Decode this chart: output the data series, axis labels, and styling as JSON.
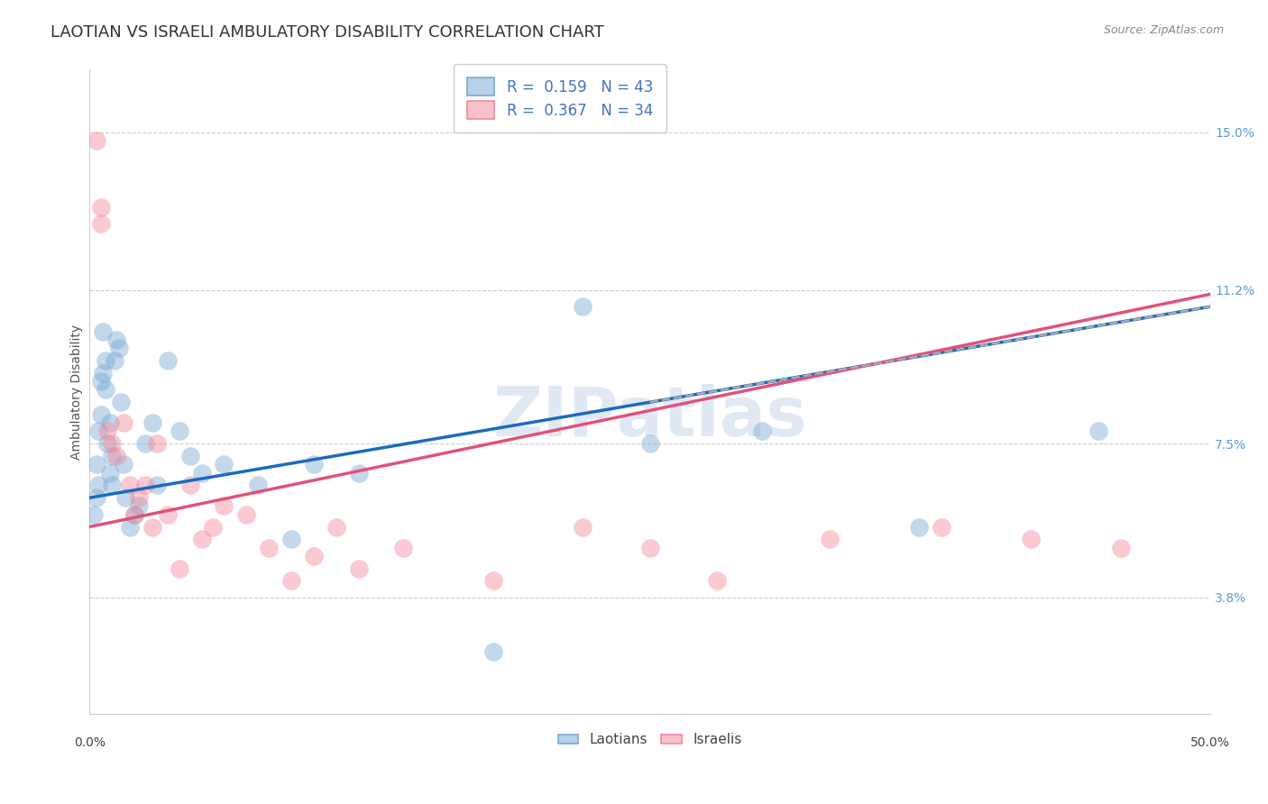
{
  "title": "LAOTIAN VS ISRAELI AMBULATORY DISABILITY CORRELATION CHART",
  "source": "Source: ZipAtlas.com",
  "ylabel": "Ambulatory Disability",
  "ytick_values": [
    3.8,
    7.5,
    11.2,
    15.0
  ],
  "xmin": 0.0,
  "xmax": 50.0,
  "ymin": 1.0,
  "ymax": 16.5,
  "watermark": "ZIPatlas",
  "laotian_color": "#7aaad4",
  "israeli_color": "#f4899a",
  "laotian_x": [
    0.2,
    0.3,
    0.3,
    0.4,
    0.4,
    0.5,
    0.5,
    0.6,
    0.6,
    0.7,
    0.7,
    0.8,
    0.9,
    0.9,
    1.0,
    1.0,
    1.1,
    1.2,
    1.3,
    1.4,
    1.5,
    1.6,
    1.8,
    2.0,
    2.2,
    2.5,
    2.8,
    3.0,
    3.5,
    4.0,
    4.5,
    5.0,
    6.0,
    7.5,
    9.0,
    10.0,
    12.0,
    18.0,
    22.0,
    25.0,
    30.0,
    37.0,
    45.0
  ],
  "laotian_y": [
    5.8,
    6.2,
    7.0,
    6.5,
    7.8,
    8.2,
    9.0,
    9.2,
    10.2,
    9.5,
    8.8,
    7.5,
    6.8,
    8.0,
    6.5,
    7.2,
    9.5,
    10.0,
    9.8,
    8.5,
    7.0,
    6.2,
    5.5,
    5.8,
    6.0,
    7.5,
    8.0,
    6.5,
    9.5,
    7.8,
    7.2,
    6.8,
    7.0,
    6.5,
    5.2,
    7.0,
    6.8,
    2.5,
    10.8,
    7.5,
    7.8,
    5.5,
    7.8
  ],
  "israeli_x": [
    0.3,
    0.5,
    0.5,
    0.8,
    1.0,
    1.2,
    1.5,
    1.8,
    2.0,
    2.2,
    2.5,
    2.8,
    3.0,
    3.5,
    4.0,
    4.5,
    5.0,
    5.5,
    6.0,
    7.0,
    8.0,
    9.0,
    10.0,
    11.0,
    12.0,
    14.0,
    18.0,
    22.0,
    25.0,
    28.0,
    33.0,
    38.0,
    42.0,
    46.0
  ],
  "israeli_y": [
    14.8,
    13.2,
    12.8,
    7.8,
    7.5,
    7.2,
    8.0,
    6.5,
    5.8,
    6.2,
    6.5,
    5.5,
    7.5,
    5.8,
    4.5,
    6.5,
    5.2,
    5.5,
    6.0,
    5.8,
    5.0,
    4.2,
    4.8,
    5.5,
    4.5,
    5.0,
    4.2,
    5.5,
    5.0,
    4.2,
    5.2,
    5.5,
    5.2,
    5.0
  ],
  "background_color": "#ffffff",
  "grid_color": "#cccccc",
  "title_fontsize": 13,
  "axis_label_fontsize": 10,
  "tick_fontsize": 10,
  "legend_fontsize": 11,
  "lao_line_intercept": 6.2,
  "lao_line_slope": 0.092,
  "isr_line_intercept": 5.5,
  "isr_line_slope": 0.112,
  "dashed_line_x_start": 25.0,
  "dashed_line_x_end": 50.0
}
